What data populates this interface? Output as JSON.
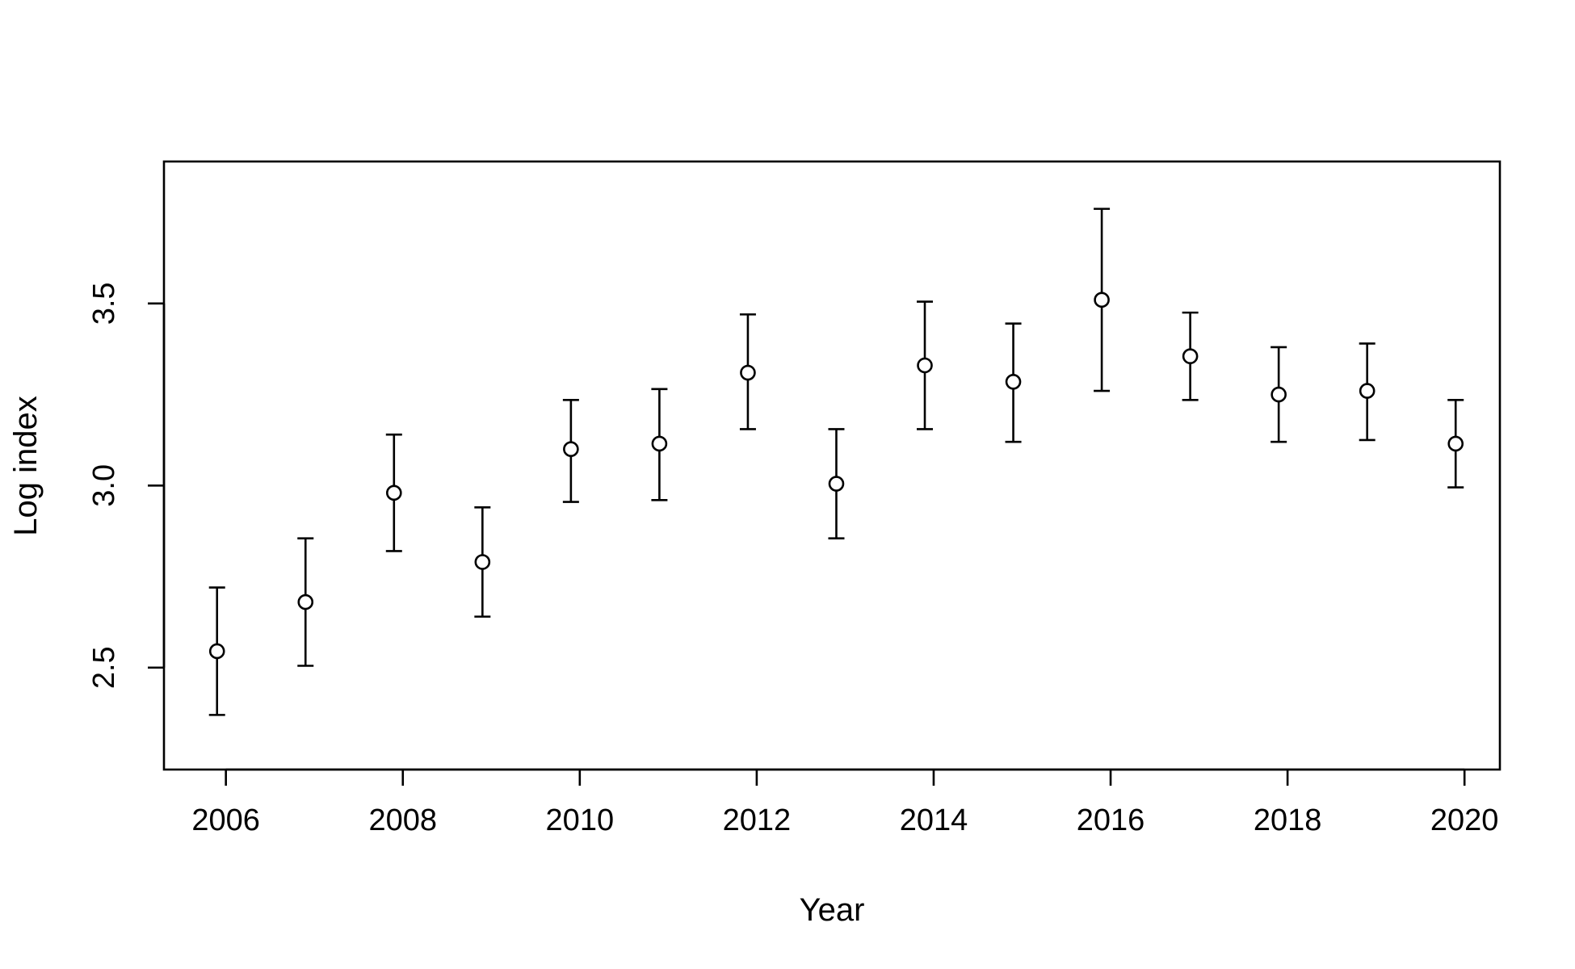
{
  "chart_data": {
    "type": "scatter",
    "title": "",
    "xlabel": "Year",
    "ylabel": "Log index",
    "xlim": [
      2005.3,
      2020.4
    ],
    "ylim": [
      2.22,
      3.89
    ],
    "x_ticks": [
      "2006",
      "2008",
      "2010",
      "2012",
      "2014",
      "2016",
      "2018",
      "2020"
    ],
    "y_ticks": [
      "2.5",
      "3.0",
      "3.5"
    ],
    "grid": false,
    "legend": "none",
    "colors": {
      "axis": "#000000",
      "point_fill": "#ffffff",
      "point_stroke": "#000000",
      "errorbar": "#000000"
    },
    "points": [
      {
        "x": 2005.9,
        "y": 2.545,
        "lower": 2.37,
        "upper": 2.72
      },
      {
        "x": 2006.9,
        "y": 2.68,
        "lower": 2.505,
        "upper": 2.855
      },
      {
        "x": 2007.9,
        "y": 2.98,
        "lower": 2.82,
        "upper": 3.14
      },
      {
        "x": 2008.9,
        "y": 2.79,
        "lower": 2.64,
        "upper": 2.94
      },
      {
        "x": 2009.9,
        "y": 3.1,
        "lower": 2.955,
        "upper": 3.235
      },
      {
        "x": 2010.9,
        "y": 3.115,
        "lower": 2.96,
        "upper": 3.265
      },
      {
        "x": 2011.9,
        "y": 3.31,
        "lower": 3.155,
        "upper": 3.47
      },
      {
        "x": 2012.9,
        "y": 3.005,
        "lower": 2.855,
        "upper": 3.155
      },
      {
        "x": 2013.9,
        "y": 3.33,
        "lower": 3.155,
        "upper": 3.505
      },
      {
        "x": 2014.9,
        "y": 3.285,
        "lower": 3.12,
        "upper": 3.445
      },
      {
        "x": 2015.9,
        "y": 3.51,
        "lower": 3.26,
        "upper": 3.76
      },
      {
        "x": 2016.9,
        "y": 3.355,
        "lower": 3.235,
        "upper": 3.475
      },
      {
        "x": 2017.9,
        "y": 3.25,
        "lower": 3.12,
        "upper": 3.38
      },
      {
        "x": 2018.9,
        "y": 3.26,
        "lower": 3.125,
        "upper": 3.39
      },
      {
        "x": 2019.9,
        "y": 3.115,
        "lower": 2.995,
        "upper": 3.235
      }
    ]
  }
}
